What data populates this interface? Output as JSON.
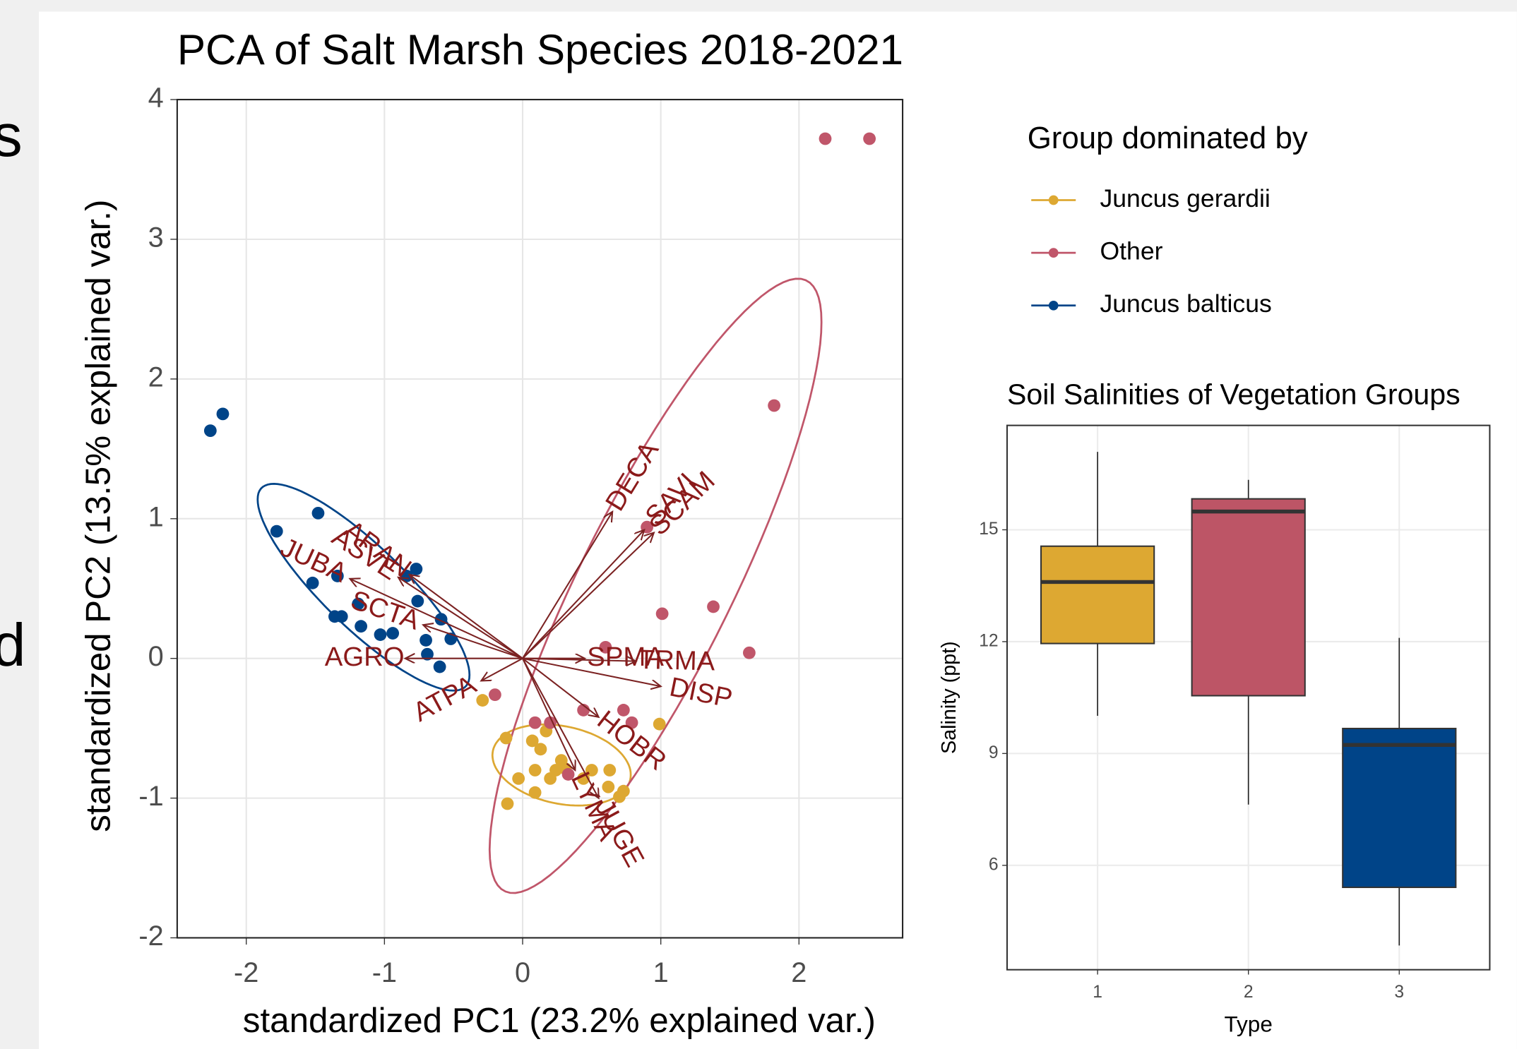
{
  "fragments": [
    "s",
    "d"
  ],
  "chart_data": [
    {
      "type": "scatter",
      "title": "PCA of Salt Marsh Species 2018-2021",
      "x_label": "standardized PC1 (23.2% explained var.)",
      "y_label": "standardized PC2 (13.5% explained var.)",
      "xlim": [
        -2.5,
        2.75
      ],
      "ylim": [
        -2,
        4
      ],
      "xticks": [
        -2,
        -1,
        0,
        1,
        2
      ],
      "yticks": [
        -2,
        -1,
        0,
        1,
        2,
        3,
        4
      ],
      "grid": true,
      "legend_title": "Group dominated by",
      "legend_position": "right",
      "series": [
        {
          "name": "Juncus gerardii",
          "color": "#DDA832",
          "x": [
            -0.29,
            -0.12,
            -0.03,
            -0.11,
            0.07,
            0.13,
            0.09,
            0.2,
            0.24,
            0.28,
            0.31,
            0.44,
            0.5,
            0.63,
            0.62,
            0.7,
            0.73,
            0.99,
            0.09,
            0.17
          ],
          "values": [
            -0.3,
            -0.57,
            -0.86,
            -1.04,
            -0.59,
            -0.65,
            -0.8,
            -0.86,
            -0.8,
            -0.73,
            -0.79,
            -0.86,
            -0.8,
            -0.8,
            -0.92,
            -0.99,
            -0.95,
            -0.47,
            -0.96,
            -0.52
          ]
        },
        {
          "name": "Other",
          "color": "#C0566A",
          "x": [
            2.19,
            2.51,
            1.82,
            0.9,
            1.01,
            1.38,
            1.64,
            0.6,
            -0.2,
            0.09,
            0.2,
            0.44,
            0.73,
            0.33,
            0.79
          ],
          "values": [
            3.72,
            3.72,
            1.81,
            0.94,
            0.32,
            0.37,
            0.04,
            0.08,
            -0.26,
            -0.46,
            -0.46,
            -0.37,
            -0.37,
            -0.83,
            -0.46
          ]
        },
        {
          "name": "Juncus balticus",
          "color": "#004488",
          "x": [
            -2.26,
            -2.17,
            -1.78,
            -1.48,
            -1.52,
            -1.34,
            -1.36,
            -1.31,
            -1.19,
            -1.17,
            -1.03,
            -0.94,
            -0.84,
            -0.77,
            -0.76,
            -0.7,
            -0.69,
            -0.59,
            -0.52,
            -0.6
          ],
          "values": [
            1.63,
            1.75,
            0.91,
            1.04,
            0.54,
            0.59,
            0.3,
            0.3,
            0.39,
            0.23,
            0.17,
            0.18,
            0.59,
            0.64,
            0.41,
            0.13,
            0.03,
            0.28,
            0.14,
            -0.06
          ]
        }
      ],
      "arrow_color": "#7B2222",
      "label_color": "#8B1A1A",
      "loadings": [
        {
          "name": "ARAN",
          "x": -0.82,
          "y": 0.6
        },
        {
          "name": "ASVE",
          "x": -0.9,
          "y": 0.58
        },
        {
          "name": "JUBA",
          "x": -1.25,
          "y": 0.57
        },
        {
          "name": "SCTA",
          "x": -0.72,
          "y": 0.24
        },
        {
          "name": "AGRO",
          "x": -0.85,
          "y": 0.0
        },
        {
          "name": "ATPA",
          "x": -0.3,
          "y": -0.16
        },
        {
          "name": "DECA",
          "x": 0.65,
          "y": 1.05
        },
        {
          "name": "SAVI",
          "x": 0.88,
          "y": 0.92
        },
        {
          "name": "SCAM",
          "x": 0.95,
          "y": 0.9
        },
        {
          "name": "SPMA",
          "x": 0.45,
          "y": 0.0
        },
        {
          "name": "TRMA",
          "x": 0.82,
          "y": -0.02
        },
        {
          "name": "DISP",
          "x": 1.0,
          "y": -0.2
        },
        {
          "name": "HOBR",
          "x": 0.55,
          "y": -0.42
        },
        {
          "name": "LYMA",
          "x": 0.38,
          "y": -0.8
        },
        {
          "name": "JUGE",
          "x": 0.55,
          "y": -1.0
        }
      ]
    },
    {
      "type": "box",
      "title": "Soil Salinities of Vegetation Groups",
      "x_label": "Type",
      "y_label": "Salinity (ppt)",
      "categories": [
        "1",
        "2",
        "3"
      ],
      "colors": [
        "#DDA832",
        "#BD5566",
        "#004488"
      ],
      "ylim": [
        3.2,
        17.8
      ],
      "yticks": [
        6,
        9,
        12,
        15
      ],
      "grid": true,
      "boxes": [
        {
          "min": 10.01,
          "q1": 11.95,
          "median": 13.6,
          "q3": 14.56,
          "max": 17.09
        },
        {
          "min": 7.63,
          "q1": 10.55,
          "median": 15.49,
          "q3": 15.83,
          "max": 16.34
        },
        {
          "min": 3.85,
          "q1": 5.41,
          "median": 9.23,
          "q3": 9.67,
          "max": 12.1
        }
      ]
    }
  ]
}
